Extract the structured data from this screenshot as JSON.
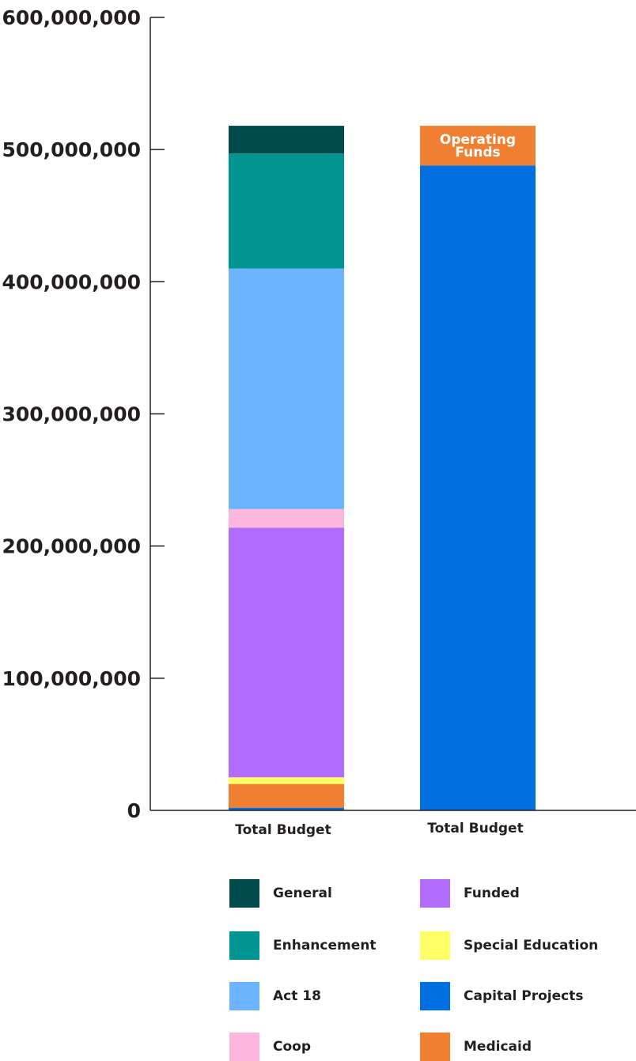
{
  "chart_data": {
    "type": "bar",
    "stacked": true,
    "categories": [
      "Total Budget",
      "Total Budget"
    ],
    "ylim": [
      0,
      600000000
    ],
    "yticks": [
      0,
      100000000,
      200000000,
      300000000,
      400000000,
      500000000,
      600000000
    ],
    "ytick_labels": [
      "0",
      "100,000,000",
      "200,000,000",
      "300,000,000",
      "400,000,000",
      "500,000,000",
      "600,000,000"
    ],
    "series": [
      {
        "name": "Capital Projects",
        "color": "#006fdf",
        "values": [
          2000000,
          488000000
        ]
      },
      {
        "name": "Medicaid",
        "color": "#f07f31",
        "values": [
          18000000,
          0
        ]
      },
      {
        "name": "Special Education",
        "color": "#ffff66",
        "values": [
          5000000,
          0
        ]
      },
      {
        "name": "Funded",
        "color": "#b26cfe",
        "values": [
          189000000,
          0
        ]
      },
      {
        "name": "Coop",
        "color": "#fdb7dc",
        "values": [
          14000000,
          0
        ]
      },
      {
        "name": "Act 18",
        "color": "#6cb5fe",
        "values": [
          182000000,
          0
        ]
      },
      {
        "name": "Enhancement",
        "color": "#009591",
        "values": [
          87000000,
          0
        ]
      },
      {
        "name": "General",
        "color": "#004b4b",
        "values": [
          21000000,
          0
        ]
      },
      {
        "name": "Operating Funds",
        "color": "#f07f31",
        "values": [
          0,
          30000000
        ],
        "label": [
          "Operating",
          "Funds"
        ],
        "show_in_legend": false
      }
    ],
    "legend": {
      "placement": "bottom",
      "items": [
        {
          "name": "General",
          "color": "#004b4b"
        },
        {
          "name": "Funded",
          "color": "#b26cfe"
        },
        {
          "name": "Enhancement",
          "color": "#009591"
        },
        {
          "name": "Special Education",
          "color": "#ffff66"
        },
        {
          "name": "Act 18",
          "color": "#6cb5fe"
        },
        {
          "name": "Capital Projects",
          "color": "#006fdf"
        },
        {
          "name": "Coop",
          "color": "#fdb7dc"
        },
        {
          "name": "Medicaid",
          "color": "#f07f31"
        }
      ]
    }
  }
}
